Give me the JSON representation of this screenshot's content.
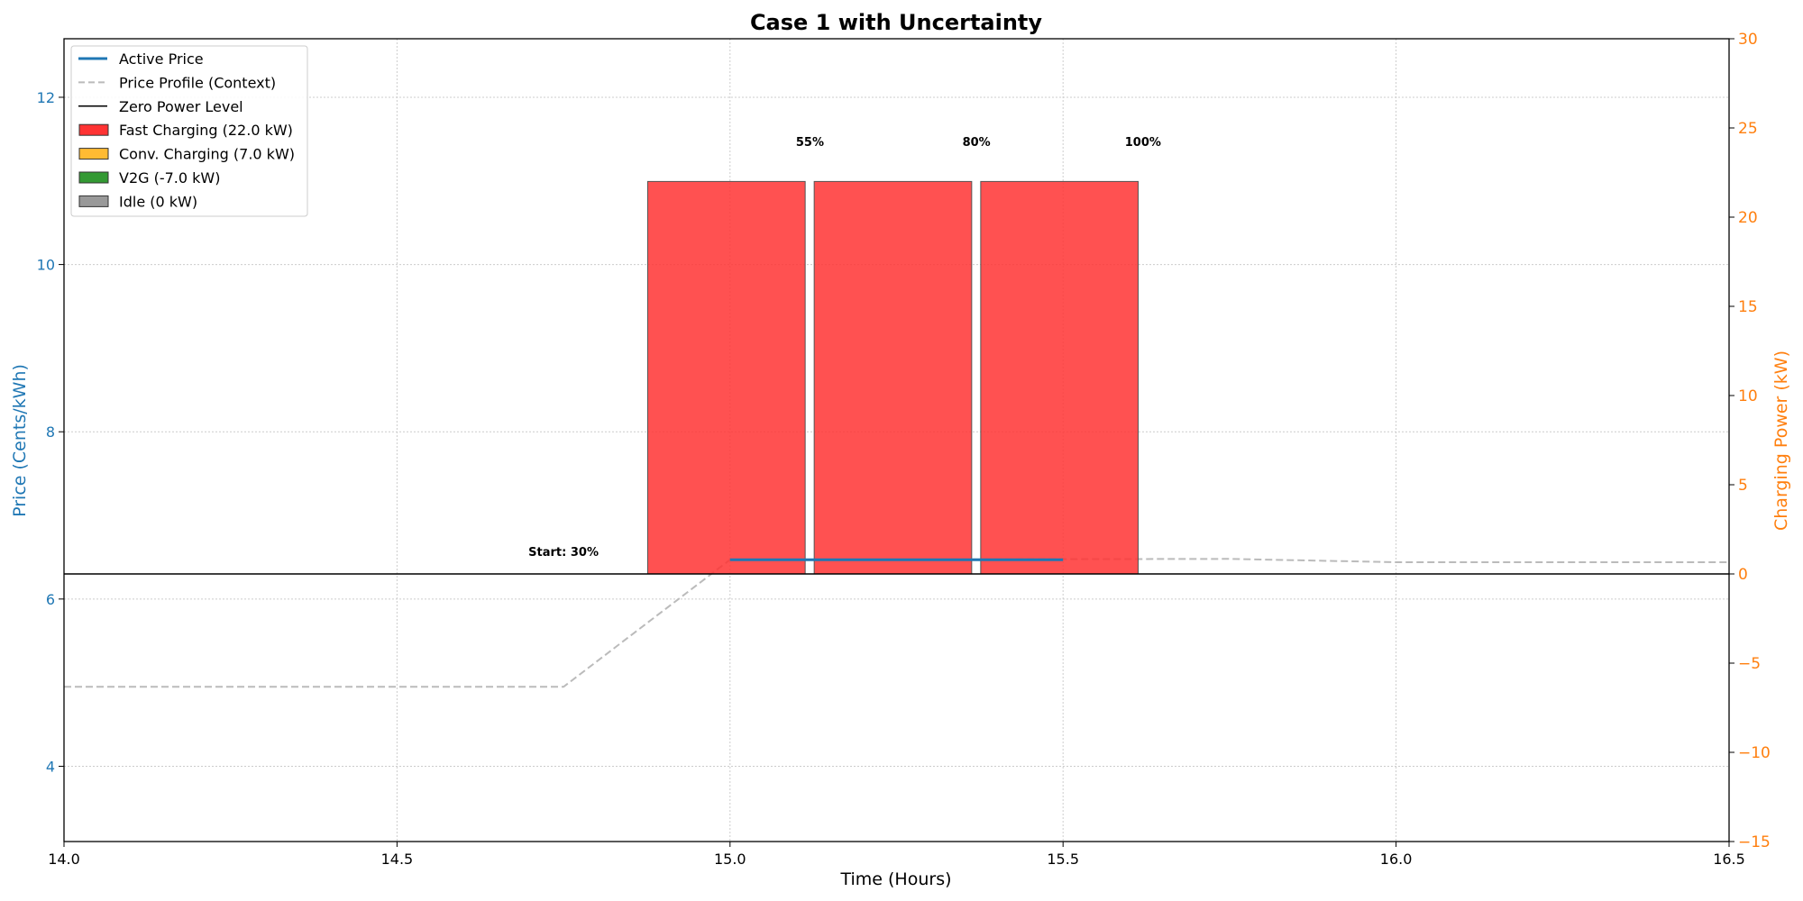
{
  "chart_data": {
    "type": "bar",
    "title": "Case 1 with Uncertainty",
    "xlabel": "Time (Hours)",
    "ylabel": "Price (Cents/kWh)",
    "y2label": "Charging Power (kW)",
    "xlim": [
      14.0,
      16.5
    ],
    "ylim": [
      3.1,
      12.7
    ],
    "y2lim": [
      -15,
      30
    ],
    "xticks": [
      14.0,
      14.5,
      15.0,
      15.5,
      16.0,
      16.5
    ],
    "xtick_labels": [
      "14.0",
      "14.5",
      "15.0",
      "15.5",
      "16.0",
      "16.5"
    ],
    "yticks": [
      4,
      6,
      8,
      10,
      12
    ],
    "ytick_labels": [
      "4",
      "6",
      "8",
      "10",
      "12"
    ],
    "y2ticks": [
      -15,
      -10,
      -5,
      0,
      5,
      10,
      15,
      20,
      25,
      30
    ],
    "y2tick_labels": [
      "−15",
      "−10",
      "−5",
      "0",
      "5",
      "10",
      "15",
      "20",
      "25",
      "30"
    ],
    "grid": true,
    "legend_position": "top-left",
    "legend": [
      {
        "label": "Active Price",
        "kind": "line",
        "color": "#1f77b4"
      },
      {
        "label": "Price Profile (Context)",
        "kind": "dashed",
        "color": "#bbbbbb"
      },
      {
        "label": "Zero Power Level",
        "kind": "line",
        "color": "#000000"
      },
      {
        "label": "Fast Charging (22.0 kW)",
        "kind": "patch",
        "color": "#ff3333"
      },
      {
        "label": "Conv. Charging (7.0 kW)",
        "kind": "patch",
        "color": "#ffbb33"
      },
      {
        "label": "V2G (-7.0 kW)",
        "kind": "patch",
        "color": "#339933"
      },
      {
        "label": "Idle (0 kW)",
        "kind": "patch",
        "color": "#999999"
      }
    ],
    "bars": [
      {
        "start": 14.875,
        "end": 15.125,
        "power": 22.0,
        "mode": "Fast Charging",
        "color": "#ff3333"
      },
      {
        "start": 15.125,
        "end": 15.375,
        "power": 22.0,
        "mode": "Fast Charging",
        "color": "#ff3333"
      },
      {
        "start": 15.375,
        "end": 15.625,
        "power": 22.0,
        "mode": "Fast Charging",
        "color": "#ff3333"
      }
    ],
    "price_profile": {
      "x": [
        14.0,
        14.75,
        15.0,
        15.75,
        16.0,
        16.5
      ],
      "y": [
        4.95,
        4.95,
        6.47,
        6.48,
        6.44,
        6.44
      ]
    },
    "active_price": {
      "x": [
        15.0,
        15.5
      ],
      "y": [
        6.47,
        6.47
      ]
    },
    "zero_power_level": 0,
    "annotations": [
      {
        "text": "Start: 30%",
        "x": 14.75,
        "y2": 1.0
      },
      {
        "text": "55%",
        "x": 15.12,
        "y2": 24.0
      },
      {
        "text": "80%",
        "x": 15.37,
        "y2": 24.0
      },
      {
        "text": "100%",
        "x": 15.62,
        "y2": 24.0
      }
    ]
  }
}
